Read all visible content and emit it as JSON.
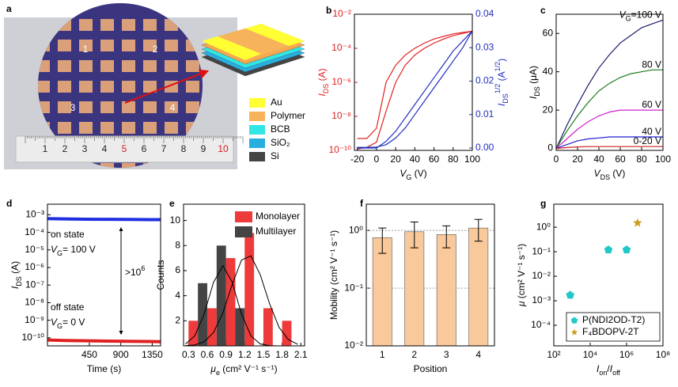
{
  "photo": {
    "label": "a",
    "devices": [
      "1",
      "2",
      "3",
      "4"
    ],
    "layers": [
      "Au",
      "Polymer",
      "BCB",
      "SiO₂",
      "Si"
    ],
    "ruler": [
      "1",
      "2",
      "3",
      "4",
      "5",
      "6",
      "7",
      "8",
      "9",
      "10"
    ]
  },
  "chart_data": [
    {
      "panel": "b",
      "type": "line",
      "ylog": true,
      "x": [
        -20,
        -10,
        0,
        10,
        20,
        30,
        40,
        50,
        60,
        70,
        80,
        90,
        100
      ],
      "series": [
        {
          "color": "#e02020",
          "values": [
            5e-10,
            5e-10,
            2e-09,
            1e-06,
            1e-05,
            4e-05,
            0.0001,
            0.0002,
            0.00035,
            0.0005,
            0.0007,
            0.00085,
            0.001
          ]
        },
        {
          "color": "#e02020",
          "values": [
            1.2e-10,
            1.5e-10,
            3e-10,
            2e-08,
            1e-06,
            1e-05,
            4e-05,
            0.0001,
            0.0002,
            0.00035,
            0.00055,
            0.00075,
            0.001
          ]
        },
        {
          "color": "#1f2fbf",
          "axis": "y2",
          "values": [
            0,
            0,
            0,
            0.002,
            0.005,
            0.009,
            0.013,
            0.017,
            0.021,
            0.025,
            0.029,
            0.032,
            0.035
          ]
        },
        {
          "color": "#1f2fbf",
          "axis": "y2",
          "values": [
            0.0002,
            0.0002,
            0.0003,
            0.001,
            0.003,
            0.006,
            0.01,
            0.014,
            0.018,
            0.022,
            0.026,
            0.03,
            0.035
          ]
        }
      ],
      "xlim": [
        -23,
        100
      ],
      "xticks": [
        -20,
        0,
        20,
        40,
        60,
        80,
        100
      ],
      "ylim": [
        1e-10,
        0.01
      ],
      "yticks": [
        {
          "value": 1e-10,
          "label": "10⁻¹⁰"
        },
        {
          "value": 1e-08,
          "label": "10⁻⁸"
        },
        {
          "value": 1e-06,
          "label": "10⁻⁶"
        },
        {
          "value": 0.0001,
          "label": "10⁻⁴"
        },
        {
          "value": 0.01,
          "label": "10⁻²"
        }
      ],
      "y2lim": [
        -0.0007,
        0.04
      ],
      "y2ticks": [
        {
          "value": 0,
          "label": "0.00"
        },
        {
          "value": 0.01,
          "label": "0.01"
        },
        {
          "value": 0.02,
          "label": "0.02"
        },
        {
          "value": 0.03,
          "label": "0.03"
        },
        {
          "value": 0.04,
          "label": "0.04"
        }
      ],
      "xlabel": [
        {
          "t": "V",
          "s": "i"
        },
        {
          "t": "G",
          "s": "sub"
        },
        {
          "t": " (V)"
        }
      ],
      "ylabel": [
        {
          "t": "I",
          "s": "i"
        },
        {
          "t": "DS",
          "s": "sub"
        },
        {
          "t": " (A)"
        }
      ],
      "y2label": [
        {
          "t": "I",
          "s": "i"
        },
        {
          "t": "DS",
          "s": "sub"
        },
        {
          "t": "1/2",
          "s": "sup"
        },
        {
          "t": " (A"
        },
        {
          "t": "1/2",
          "s": "sup"
        },
        {
          "t": ")"
        }
      ]
    },
    {
      "panel": "c",
      "type": "line",
      "x": [
        0,
        10,
        20,
        30,
        40,
        50,
        60,
        70,
        80,
        90,
        100
      ],
      "series": [
        {
          "name": "100 V",
          "color": "#1a1a6e",
          "values": [
            0,
            12,
            23,
            33,
            42,
            49,
            55,
            59,
            63,
            65,
            67
          ]
        },
        {
          "name": "80 V",
          "color": "#1a7a1a",
          "values": [
            0,
            9,
            17,
            24,
            30,
            34,
            37,
            39,
            40,
            41,
            41
          ]
        },
        {
          "name": "60 V",
          "color": "#d020d0",
          "values": [
            0,
            5,
            10,
            14,
            17,
            19,
            20,
            20,
            20,
            20,
            20
          ]
        },
        {
          "name": "40 V",
          "color": "#2020d0",
          "values": [
            0,
            2,
            4,
            5,
            5.5,
            6,
            6,
            6,
            6,
            6,
            6
          ]
        },
        {
          "name": "0-20 V",
          "color": "#d02020",
          "values": [
            0,
            0.5,
            0.8,
            1,
            1,
            1,
            1,
            1,
            1,
            1,
            1
          ]
        }
      ],
      "name_prefix": [
        {
          "t": "V",
          "s": "i"
        },
        {
          "t": "G",
          "s": "sub"
        },
        {
          "t": "="
        }
      ],
      "xlim": [
        0,
        100
      ],
      "xticks": [
        0,
        20,
        40,
        60,
        80,
        100
      ],
      "ylim": [
        -1,
        70
      ],
      "yticks": [
        0,
        20,
        40,
        60
      ],
      "xlabel": [
        {
          "t": "V",
          "s": "i"
        },
        {
          "t": "DS",
          "s": "sub"
        },
        {
          "t": " (V)"
        }
      ],
      "ylabel": [
        {
          "t": "I",
          "s": "i"
        },
        {
          "t": "DS",
          "s": "sub"
        },
        {
          "t": " (μA)"
        }
      ]
    },
    {
      "panel": "d",
      "type": "line",
      "ylog": true,
      "x": [
        -150,
        100,
        400,
        700,
        1000,
        1300,
        1470
      ],
      "series": [
        {
          "color": "#1f2fe0",
          "values": [
            0.0006,
            0.00058,
            0.00056,
            0.00055,
            0.00054,
            0.00053,
            0.00053
          ]
        },
        {
          "color": "#e02020",
          "values": [
            7.5e-11,
            7e-11,
            6.8e-11,
            6.5e-11,
            6.3e-11,
            6.2e-11,
            6e-11
          ]
        }
      ],
      "xlim": [
        -150,
        1470
      ],
      "xticks": [
        450,
        900,
        1350
      ],
      "ylim": [
        3.5e-11,
        0.004
      ],
      "yticks": [
        {
          "value": 1e-10,
          "label": "10⁻¹⁰"
        },
        {
          "value": 1e-09,
          "label": "10⁻⁹"
        },
        {
          "value": 1e-08,
          "label": "10⁻⁸"
        },
        {
          "value": 1e-07,
          "label": "10⁻⁷"
        },
        {
          "value": 1e-06,
          "label": "10⁻⁶"
        },
        {
          "value": 1e-05,
          "label": "10⁻⁵"
        },
        {
          "value": 0.0001,
          "label": "10⁻⁴"
        },
        {
          "value": 0.001,
          "label": "10⁻³"
        }
      ],
      "xlabel": "Time (s)",
      "ylabel": [
        {
          "t": "I",
          "s": "i"
        },
        {
          "t": "DS",
          "s": "sub"
        },
        {
          "t": " (A)"
        }
      ],
      "annotations": [
        [
          {
            "t": "on state"
          }
        ],
        [
          {
            "t": "V",
            "s": "i"
          },
          {
            "t": "G",
            "s": "sub"
          },
          {
            "t": "= 100 V"
          }
        ],
        [
          {
            "t": "off state"
          }
        ],
        [
          {
            "t": "V",
            "s": "i"
          },
          {
            "t": "G",
            "s": "sub"
          },
          {
            "t": "= 0 V"
          }
        ],
        [
          {
            "t": ">10"
          },
          {
            "t": "6",
            "s": "sup"
          }
        ]
      ]
    },
    {
      "panel": "e",
      "type": "histogram",
      "bins": [
        0.3,
        0.6,
        0.9,
        1.2,
        1.5,
        1.8,
        2.1
      ],
      "series": [
        {
          "name": "Monolayer",
          "color": "#ee3a3a",
          "values": [
            2,
            3,
            7,
            9,
            3,
            2
          ]
        },
        {
          "name": "Multilayer",
          "color": "#444444",
          "values": [
            5,
            8,
            3,
            0,
            0,
            0
          ]
        }
      ],
      "curves": [
        {
          "color": "#000000",
          "x": [
            0.25,
            0.4,
            0.55,
            0.7,
            0.85,
            1.0,
            1.15,
            1.3,
            1.45,
            1.6,
            1.75,
            1.9,
            2.05
          ],
          "values": [
            0.01,
            0.07,
            0.32,
            1.06,
            2.63,
            4.9,
            6.85,
            7.18,
            5.66,
            3.35,
            1.48,
            0.5,
            0.12
          ]
        },
        {
          "color": "#000000",
          "x": [
            0.25,
            0.4,
            0.55,
            0.7,
            0.85,
            1.0,
            1.15,
            1.3,
            1.45,
            1.6,
            1.75,
            1.9,
            2.05
          ],
          "values": [
            0.15,
            0.79,
            2.53,
            5.07,
            6.4,
            5.07,
            2.53,
            0.79,
            0.15,
            0.02,
            0,
            0,
            0
          ]
        }
      ],
      "xlim": [
        0.22,
        2.16
      ],
      "xticks": [
        0.3,
        0.6,
        0.9,
        1.2,
        1.5,
        1.8,
        2.1
      ],
      "ylim": [
        0,
        11.3
      ],
      "yticks": [
        2,
        4,
        6,
        8,
        10
      ],
      "legend": "upper right",
      "xlabel": [
        {
          "t": "μ",
          "s": "i"
        },
        {
          "t": "e",
          "s": "sub"
        },
        {
          "t": " (cm² V⁻¹ s⁻¹)"
        }
      ],
      "ylabel": "Counts"
    },
    {
      "panel": "f",
      "type": "bar",
      "ylog": true,
      "grid": true,
      "color": "#f9c99b",
      "categories": [
        "1",
        "2",
        "3",
        "4"
      ],
      "values": [
        0.75,
        0.95,
        0.85,
        1.1
      ],
      "errors": [
        0.35,
        0.45,
        0.35,
        0.45
      ],
      "ylim": [
        0.01,
        2.85
      ],
      "yticks": [
        {
          "value": 0.01,
          "label": "10⁻²"
        },
        {
          "value": 0.1,
          "label": "10⁻¹"
        },
        {
          "value": 1,
          "label": "10⁰"
        }
      ],
      "xlabel": "Position",
      "ylabel": "Mobility (cm² V⁻¹ s⁻¹)"
    },
    {
      "panel": "g",
      "type": "scatter",
      "xlog": true,
      "ylog": true,
      "series": [
        {
          "name": "P(NDI2OD-T2)",
          "color": "#22c8c8",
          "marker": "pentagon",
          "x": [
            800,
            100000,
            1000000
          ],
          "values": [
            0.0017,
            0.12,
            0.12
          ]
        },
        {
          "name": "F₄BDOPV-2T",
          "color": "#c8a020",
          "marker": "star",
          "x": [
            4000000
          ],
          "values": [
            1.5
          ]
        }
      ],
      "xlim": [
        100,
        100000000
      ],
      "xticks": [
        {
          "value": 100,
          "label": "10²"
        },
        {
          "value": 10000,
          "label": "10⁴"
        },
        {
          "value": 1000000,
          "label": "10⁶"
        },
        {
          "value": 100000000,
          "label": "10⁸"
        }
      ],
      "ylim": [
        1.45e-05,
        8.7
      ],
      "yticks": [
        {
          "value": 0.0001,
          "label": "10⁻⁴"
        },
        {
          "value": 0.001,
          "label": "10⁻³"
        },
        {
          "value": 0.01,
          "label": "10⁻²"
        },
        {
          "value": 0.1,
          "label": "10⁻¹"
        },
        {
          "value": 1,
          "label": "10⁰"
        }
      ],
      "legend": "lower right",
      "xlabel": [
        {
          "t": "I",
          "s": "i"
        },
        {
          "t": "on",
          "s": "sub"
        },
        {
          "t": "/"
        },
        {
          "t": "I",
          "s": "i"
        },
        {
          "t": "off",
          "s": "sub"
        }
      ],
      "ylabel": [
        {
          "t": "μ",
          "s": "i"
        },
        {
          "t": " (cm² V⁻¹ s⁻¹)"
        }
      ]
    }
  ]
}
